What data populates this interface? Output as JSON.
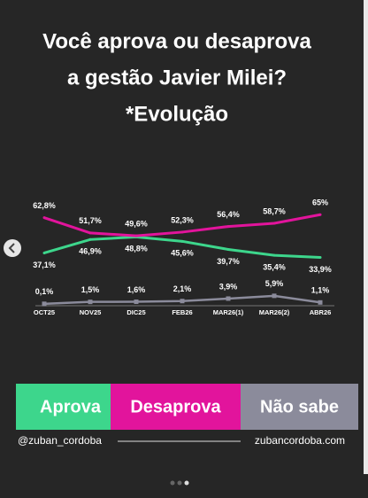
{
  "chart_data": {
    "type": "line",
    "title_lines": [
      "Você aprova ou desaprova",
      "a gestão Javier Milei?",
      "*Evolução"
    ],
    "categories": [
      "OCT25",
      "NOV25",
      "DIC25",
      "FEB26",
      "MAR26(1)",
      "MAR26(2)",
      "ABR26"
    ],
    "series": [
      {
        "name": "Aprova",
        "color": "#3dd68c",
        "values": [
          37.1,
          46.9,
          48.8,
          45.6,
          39.7,
          35.4,
          33.9
        ],
        "value_labels": [
          "37,1%",
          "46,9%",
          "48,8%",
          "45,6%",
          "39,7%",
          "35,4%",
          "33,9%"
        ]
      },
      {
        "name": "Desaprova",
        "color": "#e2149c",
        "values": [
          62.8,
          51.7,
          49.6,
          52.3,
          56.4,
          58.7,
          65
        ],
        "value_labels": [
          "62,8%",
          "51,7%",
          "49,6%",
          "52,3%",
          "56,4%",
          "58,7%",
          "65%"
        ]
      },
      {
        "name": "Não sabe",
        "color": "#8b8b9b",
        "values": [
          0.1,
          1.5,
          1.6,
          2.1,
          3.9,
          5.9,
          1.1
        ],
        "value_labels": [
          "0,1%",
          "1,5%",
          "1,6%",
          "2,1%",
          "3,9%",
          "5,9%",
          "1,1%"
        ]
      }
    ]
  },
  "footer": {
    "handle": "@zuban_cordoba",
    "website": "zubancordoba.com"
  }
}
